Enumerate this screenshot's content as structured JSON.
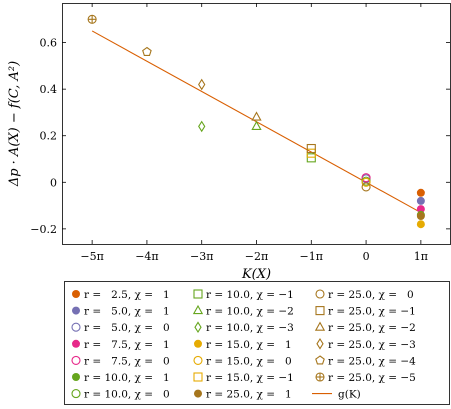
{
  "chart_data": {
    "type": "scatter",
    "title": "",
    "xlabel": "K(X)",
    "ylabel": "Δp · A(X) − f(C, A²)",
    "x_unit": "π",
    "xlim": [
      -5.55,
      1.55
    ],
    "ylim": [
      -0.265,
      0.77
    ],
    "x_ticks": [
      -5,
      -4,
      -3,
      -2,
      -1,
      0,
      1
    ],
    "x_tick_labels": [
      "−5π",
      "−4π",
      "−3π",
      "−2π",
      "−1π",
      "0",
      "1π"
    ],
    "y_ticks": [
      -0.2,
      0,
      0.2,
      0.4,
      0.6
    ],
    "y_tick_labels": [
      "−0.2",
      "0",
      "0.2",
      "0.4",
      "0.6"
    ],
    "grid": false,
    "legend_position": "bottom",
    "series": [
      {
        "name": "r =   2.5, χ =   1",
        "marker": "circle-filled",
        "color": "#d95f02",
        "x": [
          1
        ],
        "y": [
          -0.045
        ]
      },
      {
        "name": "r =   5.0, χ =   1",
        "marker": "circle-filled",
        "color": "#7570b3",
        "x": [
          1
        ],
        "y": [
          -0.08
        ]
      },
      {
        "name": "r =   5.0, χ =   0",
        "marker": "circle-open",
        "color": "#7570b3",
        "x": [
          0
        ],
        "y": [
          0.015
        ]
      },
      {
        "name": "r =   7.5, χ =   1",
        "marker": "circle-filled",
        "color": "#e7298a",
        "x": [
          1
        ],
        "y": [
          -0.115
        ]
      },
      {
        "name": "r =   7.5, χ =   0",
        "marker": "circle-open",
        "color": "#e7298a",
        "x": [
          0
        ],
        "y": [
          0.02
        ]
      },
      {
        "name": "r = 10.0, χ =   1",
        "marker": "circle-filled",
        "color": "#66a61e",
        "x": [
          1
        ],
        "y": [
          -0.14
        ]
      },
      {
        "name": "r = 10.0, χ =   0",
        "marker": "circle-open",
        "color": "#66a61e",
        "x": [
          0
        ],
        "y": [
          0.005
        ]
      },
      {
        "name": "r = 10.0, χ = −1",
        "marker": "square-open",
        "color": "#66a61e",
        "x": [
          -1
        ],
        "y": [
          0.105
        ]
      },
      {
        "name": "r = 10.0, χ = −2",
        "marker": "triangle-open",
        "color": "#66a61e",
        "x": [
          -2
        ],
        "y": [
          0.24
        ]
      },
      {
        "name": "r = 10.0, χ = −3",
        "marker": "diamond-open",
        "color": "#66a61e",
        "x": [
          -3
        ],
        "y": [
          0.24
        ]
      },
      {
        "name": "r = 15.0, χ =   1",
        "marker": "circle-filled",
        "color": "#e6ab02",
        "x": [
          1
        ],
        "y": [
          -0.18
        ]
      },
      {
        "name": "r = 15.0, χ =   0",
        "marker": "circle-open",
        "color": "#e6ab02",
        "x": [
          0
        ],
        "y": [
          0.0
        ]
      },
      {
        "name": "r = 15.0, χ = −1",
        "marker": "square-open",
        "color": "#e6ab02",
        "x": [
          -1
        ],
        "y": [
          0.125
        ]
      },
      {
        "name": "r = 25.0, χ =   1",
        "marker": "circle-filled",
        "color": "#a6761d",
        "x": [
          1
        ],
        "y": [
          -0.145
        ]
      },
      {
        "name": "r = 25.0, χ =   0",
        "marker": "circle-open",
        "color": "#a6761d",
        "x": [
          0
        ],
        "y": [
          -0.02
        ]
      },
      {
        "name": "r = 25.0, χ = −1",
        "marker": "square-open",
        "color": "#a6761d",
        "x": [
          -1
        ],
        "y": [
          0.145
        ]
      },
      {
        "name": "r = 25.0, χ = −2",
        "marker": "triangle-open",
        "color": "#a6761d",
        "x": [
          -2
        ],
        "y": [
          0.28
        ]
      },
      {
        "name": "r = 25.0, χ = −3",
        "marker": "diamond-open",
        "color": "#a6761d",
        "x": [
          -3
        ],
        "y": [
          0.42
        ]
      },
      {
        "name": "r = 25.0, χ = −4",
        "marker": "pentagon-open",
        "color": "#a6761d",
        "x": [
          -4
        ],
        "y": [
          0.56
        ]
      },
      {
        "name": "r = 25.0, χ = −5",
        "marker": "oplus",
        "color": "#a6761d",
        "x": [
          -5
        ],
        "y": [
          0.7
        ]
      }
    ],
    "fit_line": {
      "name": "g(K)",
      "color": "#d95f02",
      "x": [
        -5,
        1
      ],
      "y": [
        0.65,
        -0.13
      ]
    }
  }
}
